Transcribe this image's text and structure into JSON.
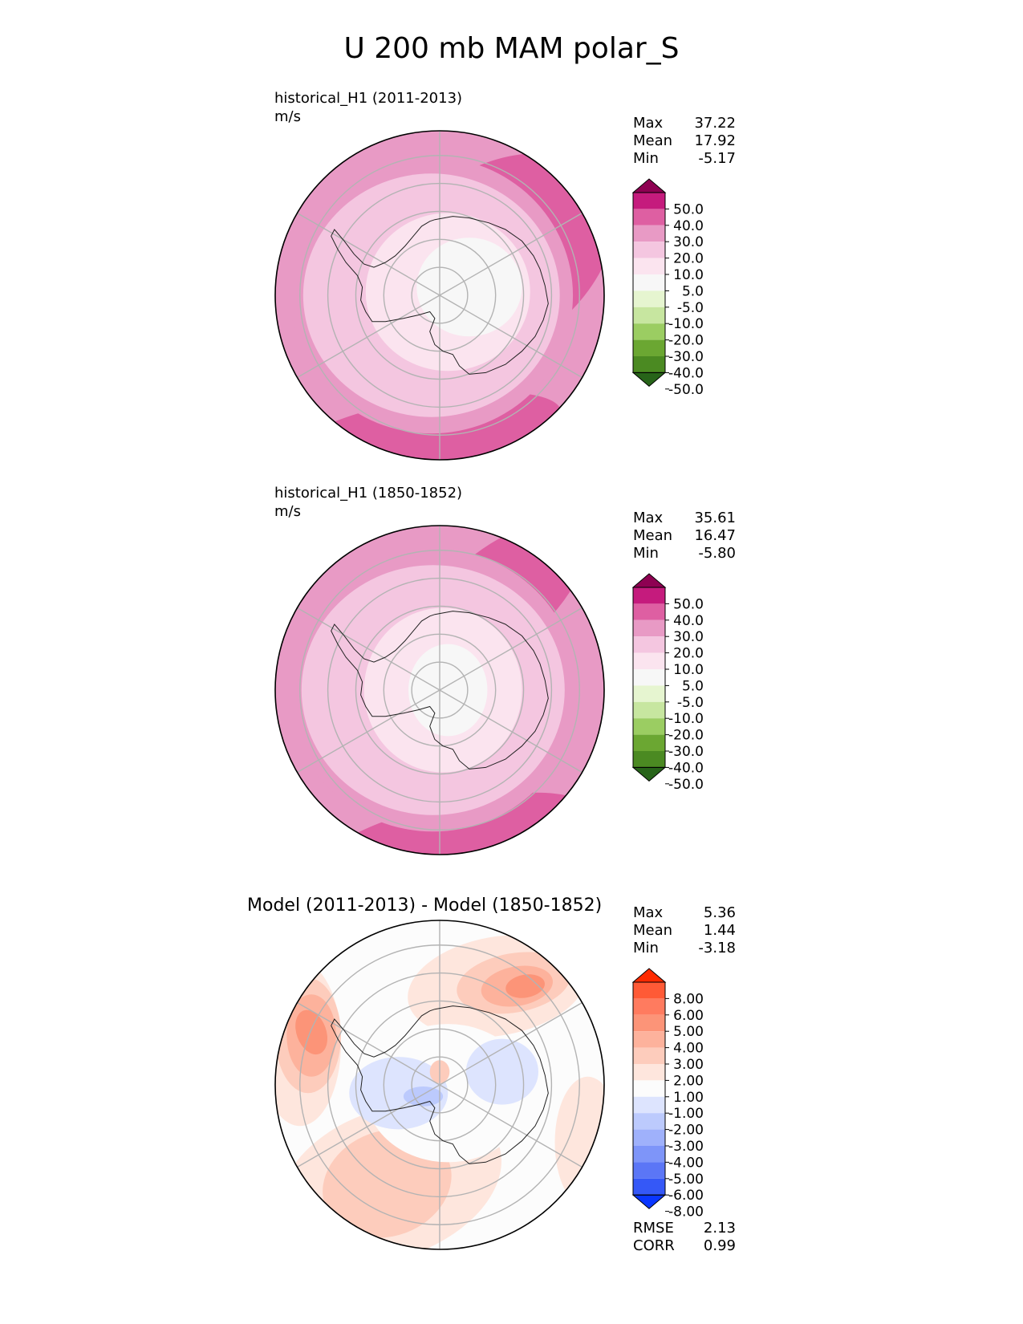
{
  "figure_title": "U 200 mb MAM polar_S",
  "chart_data": [
    {
      "type": "heatmap",
      "projection": "south-polar stereographic",
      "title": "historical_H1 (2011-2013)",
      "units": "m/s",
      "stats": [
        {
          "label": "Max",
          "value": "37.22"
        },
        {
          "label": "Mean",
          "value": "17.92"
        },
        {
          "label": "Min",
          "value": "-5.17"
        }
      ],
      "colorbar": {
        "extend": "both",
        "ticks": [
          "50.0",
          "40.0",
          "30.0",
          "20.0",
          "10.0",
          "5.0",
          "-5.0",
          "-10.0",
          "-20.0",
          "-30.0",
          "-40.0",
          "-50.0"
        ],
        "colors": [
          "#8e0152",
          "#c51b7d",
          "#de5fa2",
          "#e89ac5",
          "#f4c6e0",
          "#fbe4ef",
          "#f7f7f7",
          "#e6f5d0",
          "#c7e6a0",
          "#9bcd62",
          "#6ba732",
          "#4b8a22",
          "#276419"
        ]
      },
      "field": {
        "max": 37.22,
        "mean": 17.92,
        "min": -5.17
      }
    },
    {
      "type": "heatmap",
      "projection": "south-polar stereographic",
      "title": "historical_H1 (1850-1852)",
      "units": "m/s",
      "stats": [
        {
          "label": "Max",
          "value": "35.61"
        },
        {
          "label": "Mean",
          "value": "16.47"
        },
        {
          "label": "Min",
          "value": "-5.80"
        }
      ],
      "colorbar": {
        "extend": "both",
        "ticks": [
          "50.0",
          "40.0",
          "30.0",
          "20.0",
          "10.0",
          "5.0",
          "-5.0",
          "-10.0",
          "-20.0",
          "-30.0",
          "-40.0",
          "-50.0"
        ],
        "colors": [
          "#8e0152",
          "#c51b7d",
          "#de5fa2",
          "#e89ac5",
          "#f4c6e0",
          "#fbe4ef",
          "#f7f7f7",
          "#e6f5d0",
          "#c7e6a0",
          "#9bcd62",
          "#6ba732",
          "#4b8a22",
          "#276419"
        ]
      },
      "field": {
        "max": 35.61,
        "mean": 16.47,
        "min": -5.8
      }
    },
    {
      "type": "heatmap",
      "projection": "south-polar stereographic",
      "title": "Model (2011-2013) - Model (1850-1852)",
      "stats": [
        {
          "label": "Max",
          "value": "5.36"
        },
        {
          "label": "Mean",
          "value": "1.44"
        },
        {
          "label": "Min",
          "value": "-3.18"
        }
      ],
      "bottom_stats": [
        {
          "label": "RMSE",
          "value": "2.13"
        },
        {
          "label": "CORR",
          "value": "0.99"
        }
      ],
      "colorbar": {
        "extend": "both",
        "ticks": [
          "8.00",
          "6.00",
          "5.00",
          "4.00",
          "3.00",
          "2.00",
          "1.00",
          "-1.00",
          "-2.00",
          "-3.00",
          "-4.00",
          "-5.00",
          "-6.00",
          "-8.00"
        ],
        "colors": [
          "#ff2a00",
          "#ff5a36",
          "#ff7b5f",
          "#fc9478",
          "#fdb29c",
          "#fdccbc",
          "#fee6dd",
          "#fcfcfc",
          "#dde4fe",
          "#bccafd",
          "#9fb1fb",
          "#7e95f9",
          "#5b76f6",
          "#3558f7",
          "#0a36ff"
        ]
      },
      "field": {
        "max": 5.36,
        "mean": 1.44,
        "min": -3.18
      }
    }
  ]
}
